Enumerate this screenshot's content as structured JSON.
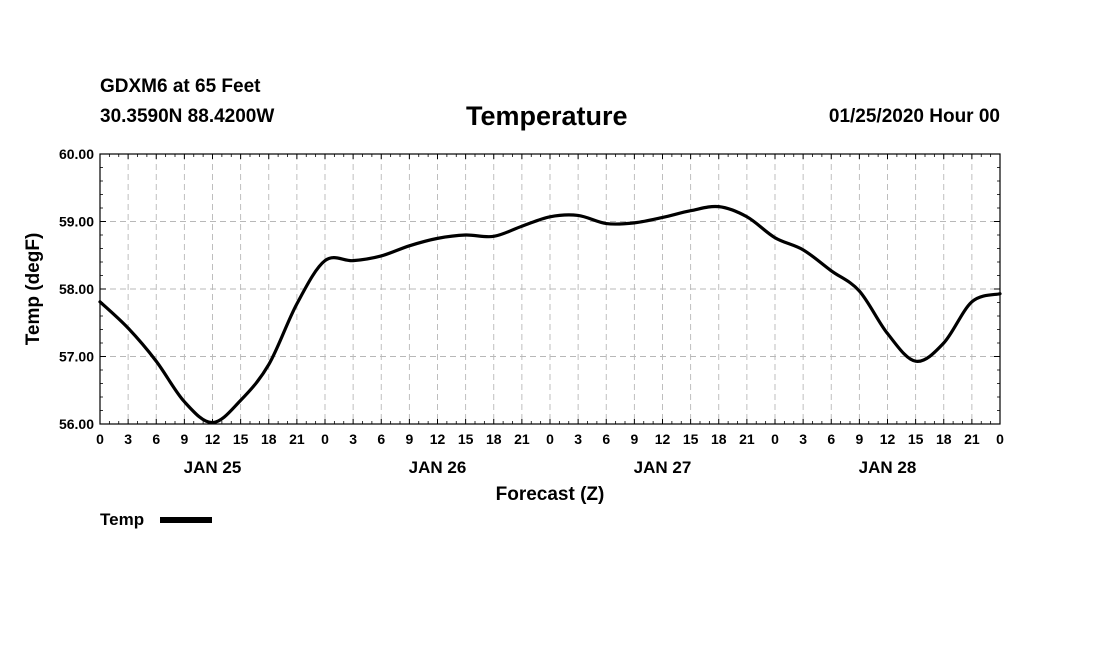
{
  "header": {
    "station": "GDXM6 at 65 Feet",
    "coords": "30.3590N 88.4200W",
    "title": "Temperature",
    "datetime": "01/25/2020 Hour 00"
  },
  "chart_data": {
    "type": "line",
    "title": "Temperature",
    "xlabel": "Forecast (Z)",
    "ylabel": "Temp (degF)",
    "ylim": [
      56,
      60
    ],
    "yticks": [
      "56.00",
      "57.00",
      "58.00",
      "59.00",
      "60.00"
    ],
    "xlim_hours": [
      0,
      96
    ],
    "xtick_step_hours": 3,
    "xtick_labels": [
      "0",
      "3",
      "6",
      "9",
      "12",
      "15",
      "18",
      "21",
      "0",
      "3",
      "6",
      "9",
      "12",
      "15",
      "18",
      "21",
      "0",
      "3",
      "6",
      "9",
      "12",
      "15",
      "18",
      "21",
      "0",
      "3",
      "6",
      "9",
      "12",
      "15",
      "18",
      "21",
      "0"
    ],
    "day_labels": [
      {
        "label": "JAN 25",
        "hour": 12
      },
      {
        "label": "JAN 26",
        "hour": 36
      },
      {
        "label": "JAN 27",
        "hour": 60
      },
      {
        "label": "JAN 28",
        "hour": 84
      }
    ],
    "grid": true,
    "legend": {
      "label": "Temp",
      "position": "bottom-left"
    },
    "series": [
      {
        "name": "Temp",
        "color": "#000000",
        "x": [
          0,
          3,
          6,
          9,
          12,
          15,
          18,
          21,
          24,
          27,
          30,
          33,
          36,
          39,
          42,
          45,
          48,
          51,
          54,
          57,
          60,
          63,
          66,
          69,
          72,
          75,
          78,
          81,
          84,
          87,
          90,
          93,
          96
        ],
        "values": [
          57.81,
          57.42,
          56.93,
          56.33,
          56.02,
          56.35,
          56.88,
          57.78,
          58.42,
          58.42,
          58.49,
          58.64,
          58.75,
          58.8,
          58.78,
          58.93,
          59.07,
          59.09,
          58.97,
          58.98,
          59.06,
          59.16,
          59.22,
          59.07,
          58.76,
          58.58,
          58.27,
          57.97,
          57.34,
          56.93,
          57.2,
          57.81,
          57.93
        ]
      }
    ]
  }
}
